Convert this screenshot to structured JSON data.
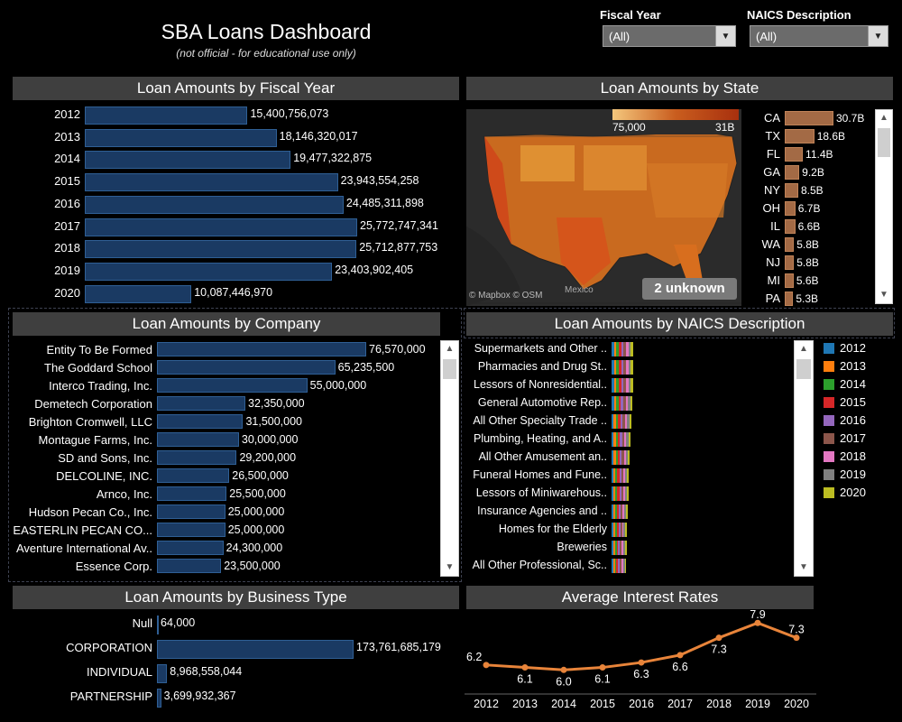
{
  "header": {
    "title": "SBA Loans Dashboard",
    "subtitle": "(not official - for educational use only)"
  },
  "filters": {
    "fiscal_year": {
      "label": "Fiscal Year",
      "value": "(All)"
    },
    "naics": {
      "label": "NAICS Description",
      "value": "(All)"
    }
  },
  "panels": {
    "fiscal_year": "Loan Amounts by Fiscal Year",
    "state": "Loan Amounts by State",
    "company": "Loan Amounts by Company",
    "naics": "Loan Amounts by NAICS Description",
    "business_type": "Loan Amounts by Business Type",
    "interest": "Average Interest Rates"
  },
  "map": {
    "legend_min": "75,000",
    "legend_max": "31B",
    "attribution": "© Mapbox © OSM",
    "mexico_label": "Mexico",
    "unknown_badge": "2 unknown"
  },
  "chart_data": [
    {
      "id": "fiscal_year",
      "type": "bar",
      "orientation": "horizontal",
      "categories": [
        "2012",
        "2013",
        "2014",
        "2015",
        "2016",
        "2017",
        "2018",
        "2019",
        "2020"
      ],
      "values": [
        15400756073,
        18146320017,
        19477322875,
        23943554258,
        24485311898,
        25772747341,
        25712877753,
        23403902405,
        10087446970
      ],
      "labels": [
        "15,400,756,073",
        "18,146,320,017",
        "19,477,322,875",
        "23,943,554,258",
        "24,485,311,898",
        "25,772,747,341",
        "25,712,877,753",
        "23,403,902,405",
        "10,087,446,970"
      ],
      "color": "#1a3a63"
    },
    {
      "id": "state",
      "type": "bar",
      "orientation": "horizontal",
      "categories": [
        "CA",
        "TX",
        "FL",
        "GA",
        "NY",
        "OH",
        "IL",
        "WA",
        "NJ",
        "MI",
        "PA"
      ],
      "values": [
        30.7,
        18.6,
        11.4,
        9.2,
        8.5,
        6.7,
        6.6,
        5.8,
        5.8,
        5.6,
        5.3
      ],
      "labels": [
        "30.7B",
        "18.6B",
        "11.4B",
        "9.2B",
        "8.5B",
        "6.7B",
        "6.6B",
        "5.8B",
        "5.8B",
        "5.6B",
        "5.3B"
      ],
      "units": "B",
      "color": "#a36a45"
    },
    {
      "id": "company",
      "type": "bar",
      "orientation": "horizontal",
      "categories": [
        "Entity To Be Formed",
        "The Goddard School",
        "Interco Trading, Inc.",
        "Demetech Corporation",
        "Brighton Cromwell, LLC",
        "Montague Farms, Inc.",
        "SD and Sons, Inc.",
        "DELCOLINE, INC.",
        "Arnco, Inc.",
        "Hudson Pecan Co., Inc.",
        "EASTERLIN PECAN CO...",
        "Aventure International Av..",
        "Essence Corp."
      ],
      "values": [
        76570000,
        65235500,
        55000000,
        32350000,
        31500000,
        30000000,
        29200000,
        26500000,
        25500000,
        25000000,
        25000000,
        24300000,
        23500000
      ],
      "labels": [
        "76,570,000",
        "65,235,500",
        "55,000,000",
        "32,350,000",
        "31,500,000",
        "30,000,000",
        "29,200,000",
        "26,500,000",
        "25,500,000",
        "25,000,000",
        "25,000,000",
        "24,300,000",
        "23,500,000"
      ],
      "color": "#1a3a63"
    },
    {
      "id": "naics",
      "type": "bar",
      "orientation": "horizontal",
      "stacked": true,
      "categories": [
        "Supermarkets and Other ..",
        "Pharmacies and Drug St..",
        "Lessors of Nonresidential..",
        "General Automotive Rep..",
        "All Other Specialty Trade ..",
        "Plumbing, Heating, and A..",
        "All Other Amusement an..",
        "Funeral Homes and Fune..",
        "Lessors of Miniwarehous..",
        "Insurance Agencies and ..",
        "Homes for the Elderly",
        "Breweries",
        "All Other Professional, Sc.."
      ],
      "series": [
        {
          "name": "2012",
          "color": "#1f77b4"
        },
        {
          "name": "2013",
          "color": "#ff7f0e"
        },
        {
          "name": "2014",
          "color": "#2ca02c"
        },
        {
          "name": "2015",
          "color": "#d62728"
        },
        {
          "name": "2016",
          "color": "#9467bd"
        },
        {
          "name": "2017",
          "color": "#8c564b"
        },
        {
          "name": "2018",
          "color": "#e377c2"
        },
        {
          "name": "2019",
          "color": "#7f7f7f"
        },
        {
          "name": "2020",
          "color": "#bcbd22"
        }
      ],
      "totals_relative": [
        1.0,
        1.0,
        1.0,
        0.97,
        0.92,
        0.88,
        0.85,
        0.8,
        0.8,
        0.75,
        0.72,
        0.7,
        0.68
      ]
    },
    {
      "id": "business_type",
      "type": "bar",
      "orientation": "horizontal",
      "categories": [
        "Null",
        "CORPORATION",
        "INDIVIDUAL",
        "PARTNERSHIP"
      ],
      "values": [
        64000,
        173761685179,
        8968558044,
        3699932367
      ],
      "labels": [
        "64,000",
        "173,761,685,179",
        "8,968,558,044",
        "3,699,932,367"
      ],
      "color": "#1a3a63"
    },
    {
      "id": "interest",
      "type": "line",
      "x": [
        "2012",
        "2013",
        "2014",
        "2015",
        "2016",
        "2017",
        "2018",
        "2019",
        "2020"
      ],
      "values": [
        6.2,
        6.1,
        6.0,
        6.1,
        6.3,
        6.6,
        7.3,
        7.9,
        7.3
      ],
      "labels": [
        "6.2",
        "6.1",
        "6.0",
        "6.1",
        "6.3",
        "6.6",
        "7.3",
        "7.9",
        "7.3"
      ],
      "color": "#e8843a"
    }
  ]
}
